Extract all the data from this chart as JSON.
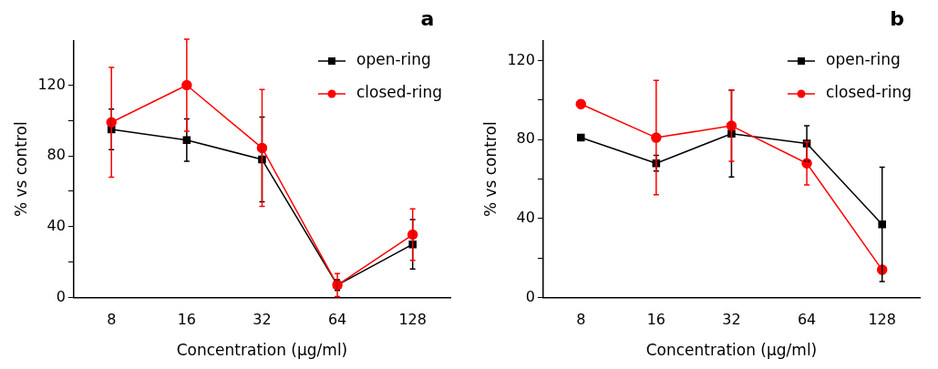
{
  "chart_data": [
    {
      "type": "line",
      "title": "a",
      "xlabel": "Concentration (µg/ml)",
      "ylabel": "% vs control",
      "categories": [
        "8",
        "16",
        "32",
        "64",
        "128"
      ],
      "ylim": [
        0,
        145
      ],
      "yticks": [
        0,
        {
          "value": 20,
          "label": null
        },
        40,
        {
          "value": 60,
          "label": null
        },
        80,
        {
          "value": 100,
          "label": null
        },
        120
      ],
      "grid": false,
      "legend": "top right",
      "line_style": "solid",
      "series": [
        {
          "name": "open-ring",
          "color": "#000000",
          "marker": "square",
          "values": [
            95,
            89,
            78,
            7,
            30
          ],
          "errors": [
            11.5,
            12,
            24,
            3,
            14
          ]
        },
        {
          "name": "closed-ring",
          "color": "#ff0000",
          "marker": "circle",
          "values": [
            99,
            120,
            84.5,
            7,
            35.5
          ],
          "errors": [
            31,
            26,
            33,
            6.5,
            14.5
          ]
        }
      ]
    },
    {
      "type": "line",
      "title": "b",
      "xlabel": "Concentration (µg/ml)",
      "ylabel": "% vs control",
      "categories": [
        "8",
        "16",
        "32",
        "64",
        "128"
      ],
      "ylim": [
        0,
        130
      ],
      "yticks": [
        0,
        {
          "value": 20,
          "label": null
        },
        40,
        {
          "value": 60,
          "label": null
        },
        80,
        {
          "value": 100,
          "label": null
        },
        120
      ],
      "grid": false,
      "legend": "top right",
      "line_style": "solid",
      "series": [
        {
          "name": "open-ring",
          "color": "#000000",
          "marker": "square",
          "values": [
            81,
            68,
            83,
            78,
            37
          ],
          "errors": [
            null,
            4,
            22,
            9,
            29
          ]
        },
        {
          "name": "closed-ring",
          "color": "#ff0000",
          "marker": "circle",
          "values": [
            98,
            81,
            87,
            68,
            14
          ],
          "errors": [
            2,
            29,
            18,
            11,
            null
          ]
        }
      ]
    }
  ]
}
